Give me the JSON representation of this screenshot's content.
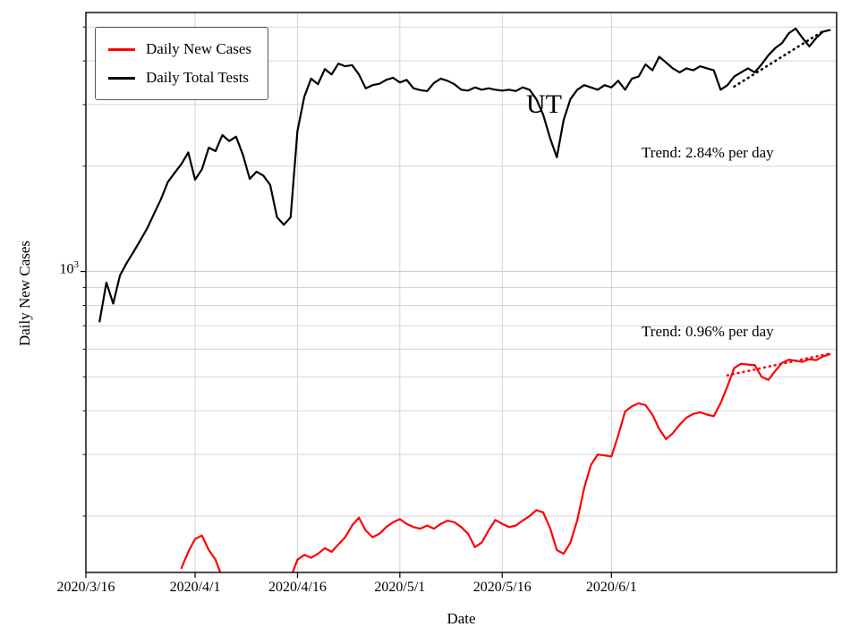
{
  "chart_data": {
    "type": "line",
    "region_label": "UT",
    "xlabel": "Date",
    "ylabel": "Daily New Cases",
    "yscale": "log",
    "grid": "both",
    "legend_position": "upper-left",
    "day0_date": "2020/3/16",
    "xlim_days": [
      0,
      110
    ],
    "ylim": [
      138,
      5500
    ],
    "xticks": [
      {
        "day": 0,
        "label": "2020/3/16"
      },
      {
        "day": 16,
        "label": "2020/4/1"
      },
      {
        "day": 31,
        "label": "2020/4/16"
      },
      {
        "day": 46,
        "label": "2020/5/1"
      },
      {
        "day": 61,
        "label": "2020/5/16"
      },
      {
        "day": 77,
        "label": "2020/6/1"
      }
    ],
    "ytick": {
      "value": 1000,
      "base": "10",
      "exponent": "3"
    },
    "legend": {
      "entries": [
        {
          "label": "Daily New Cases",
          "color": "#ff0000"
        },
        {
          "label": "Daily Total Tests",
          "color": "#000000"
        }
      ]
    },
    "series": [
      {
        "name": "Daily New Cases",
        "color": "#ff0000",
        "start_day": 14,
        "values": [
          142,
          158,
          172,
          176,
          160,
          150,
          133,
          120,
          115,
          118,
          112,
          110,
          115,
          112,
          118,
          125,
          133,
          150,
          155,
          152,
          156,
          162,
          158,
          166,
          174,
          188,
          198,
          182,
          174,
          178,
          186,
          192,
          196,
          190,
          186,
          184,
          188,
          184,
          190,
          194,
          192,
          186,
          178,
          163,
          168,
          182,
          195,
          190,
          186,
          188,
          194,
          200,
          208,
          205,
          185,
          160,
          156,
          168,
          195,
          240,
          280,
          300,
          298,
          296,
          340,
          398,
          412,
          420,
          415,
          390,
          355,
          332,
          345,
          365,
          382,
          392,
          396,
          390,
          386,
          420,
          470,
          530,
          545,
          542,
          540,
          500,
          490,
          520,
          548,
          560,
          556,
          552,
          562,
          558,
          572,
          580
        ]
      },
      {
        "name": "Daily Total Tests",
        "color": "#000000",
        "start_day": 2,
        "values": [
          720,
          930,
          810,
          975,
          1060,
          1140,
          1230,
          1330,
          1465,
          1610,
          1800,
          1915,
          2030,
          2190,
          1830,
          1960,
          2260,
          2210,
          2455,
          2360,
          2430,
          2160,
          1840,
          1930,
          1880,
          1770,
          1430,
          1360,
          1430,
          2520,
          3160,
          3560,
          3430,
          3790,
          3660,
          3930,
          3860,
          3890,
          3660,
          3340,
          3410,
          3440,
          3530,
          3580,
          3470,
          3530,
          3340,
          3300,
          3280,
          3460,
          3560,
          3510,
          3430,
          3310,
          3290,
          3360,
          3310,
          3340,
          3310,
          3290,
          3310,
          3280,
          3360,
          3310,
          3110,
          2810,
          2410,
          2120,
          2710,
          3110,
          3310,
          3410,
          3360,
          3310,
          3410,
          3360,
          3510,
          3310,
          3560,
          3610,
          3910,
          3760,
          4110,
          3960,
          3810,
          3710,
          3810,
          3760,
          3860,
          3810,
          3760,
          3310,
          3410,
          3610,
          3710,
          3810,
          3710,
          3910,
          4150,
          4350,
          4500,
          4800,
          4950,
          4650,
          4400,
          4650,
          4850,
          4900
        ]
      }
    ],
    "trends": [
      {
        "series": "Daily Total Tests",
        "label": "Trend: 2.84% per day",
        "rate_percent_per_day": 2.84,
        "start_day": 95,
        "start_value": 3380,
        "end_day": 108,
        "color": "#000000"
      },
      {
        "series": "Daily New Cases",
        "label": "Trend: 0.96% per day",
        "rate_percent_per_day": 0.96,
        "start_day": 94,
        "start_value": 505,
        "end_day": 109,
        "color": "#ff0000"
      }
    ]
  }
}
